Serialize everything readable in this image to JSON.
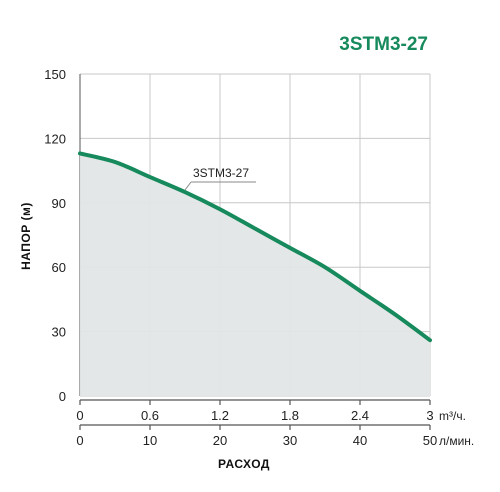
{
  "title": "3STM3-27",
  "colors": {
    "accent": "#168a5c",
    "fill": "#e3e6e6",
    "grid": "#c8c8c8",
    "axis": "#555555"
  },
  "chart_data": {
    "type": "area",
    "title": "3STM3-27",
    "ylabel": "НАПОР (м)",
    "xlabel": "РАСХОД",
    "ylim": [
      0,
      150
    ],
    "xlim": [
      0,
      3
    ],
    "y_ticks": [
      "0",
      "30",
      "60",
      "90",
      "120",
      "150"
    ],
    "x_ticks_primary": [
      "0",
      "0.6",
      "1.2",
      "1.8",
      "2.4",
      "3"
    ],
    "x_ticks_secondary": [
      "0",
      "10",
      "20",
      "30",
      "40",
      "50"
    ],
    "x_unit_primary": "m³/ч.",
    "x_unit_secondary": "л/мин.",
    "grid": true,
    "series": [
      {
        "name": "3STM3-27",
        "x": [
          0,
          0.3,
          0.6,
          0.9,
          1.2,
          1.5,
          1.8,
          2.1,
          2.4,
          2.7,
          3.0
        ],
        "y": [
          113,
          109,
          102,
          95,
          87,
          78,
          69,
          60,
          49,
          38,
          26
        ]
      }
    ]
  }
}
